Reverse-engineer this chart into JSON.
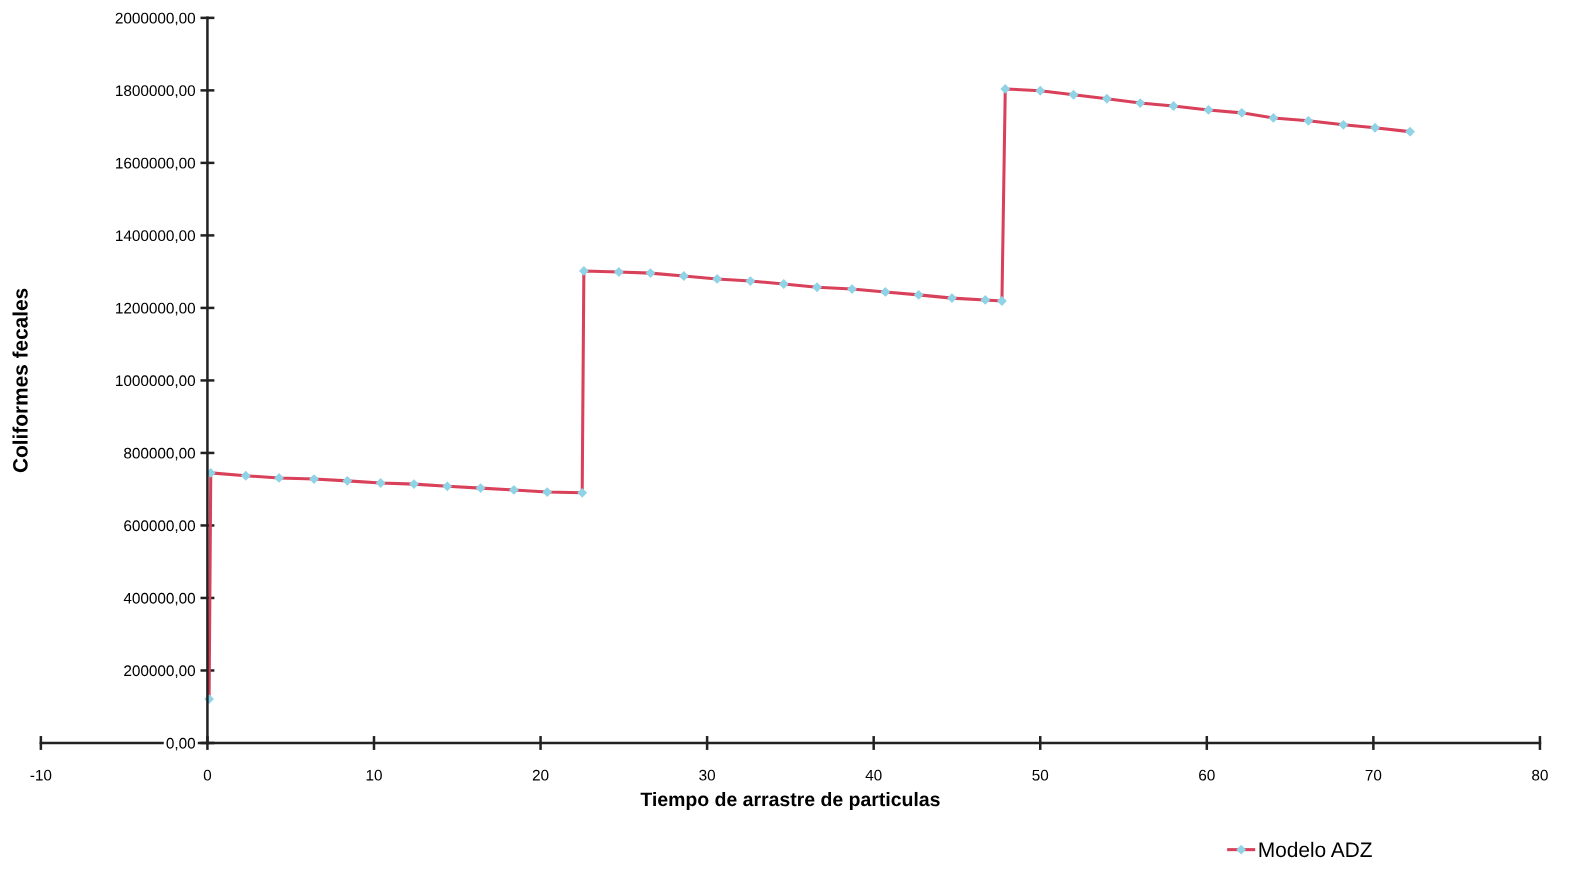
{
  "chart_data": {
    "type": "line",
    "xlabel": "Tiempo de arrastre de particulas",
    "ylabel": "Coliformes fecales",
    "xlim": [
      -10,
      80
    ],
    "xticks": [
      -10,
      0,
      10,
      20,
      30,
      40,
      50,
      60,
      70,
      80
    ],
    "ylim": [
      0,
      2000000
    ],
    "yticks": [
      {
        "value": 0,
        "label": "0,00"
      },
      {
        "value": 200000,
        "label": "200000,00"
      },
      {
        "value": 400000,
        "label": "400000,00"
      },
      {
        "value": 600000,
        "label": "600000,00"
      },
      {
        "value": 800000,
        "label": "800000,00"
      },
      {
        "value": 1000000,
        "label": "1000000,00"
      },
      {
        "value": 1200000,
        "label": "1200000,00"
      },
      {
        "value": 1400000,
        "label": "1400000,00"
      },
      {
        "value": 1600000,
        "label": "1600000,00"
      },
      {
        "value": 1800000,
        "label": "1800000,00"
      },
      {
        "value": 2000000,
        "label": "2000000,00"
      }
    ],
    "grid": false,
    "legend": "bottom right",
    "marker": "diamond",
    "line_style": "solid",
    "series": [
      {
        "name": "Modelo ADZ",
        "color": "#d9405a",
        "x": [
          0.1,
          0.2,
          2.3,
          4.3,
          6.4,
          8.4,
          10.4,
          12.4,
          14.4,
          16.4,
          18.4,
          20.4,
          22.5,
          22.6,
          24.7,
          26.6,
          28.6,
          30.6,
          32.6,
          34.6,
          36.6,
          38.7,
          40.7,
          42.7,
          44.7,
          46.7,
          47.7,
          47.9,
          50.0,
          52.0,
          54.0,
          56.0,
          58.0,
          60.1,
          62.1,
          64.0,
          66.1,
          68.2,
          70.1,
          72.2
        ],
        "values": [
          121000,
          745000,
          737000,
          731000,
          728000,
          723000,
          717000,
          714000,
          708000,
          703000,
          698000,
          692000,
          690000,
          1302000,
          1299000,
          1296000,
          1288000,
          1280000,
          1274000,
          1266000,
          1257000,
          1252000,
          1244000,
          1236000,
          1227000,
          1222000,
          1219000,
          1804000,
          1799000,
          1788000,
          1777000,
          1765000,
          1757000,
          1746000,
          1738000,
          1724000,
          1716000,
          1705000,
          1697000,
          1686000
        ]
      }
    ]
  }
}
